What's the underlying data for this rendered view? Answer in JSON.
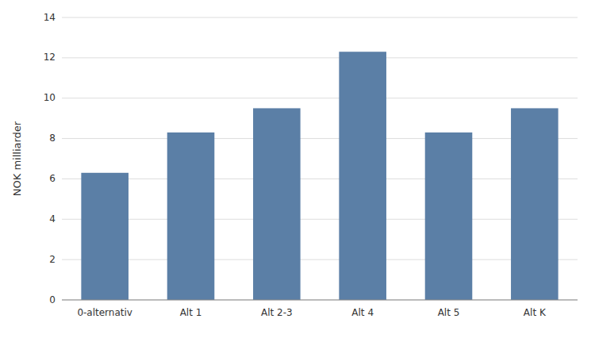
{
  "chart_data": {
    "type": "bar",
    "categories": [
      "0-alternativ",
      "Alt 1",
      "Alt 2-3",
      "Alt 4",
      "Alt 5",
      "Alt K"
    ],
    "values": [
      6.3,
      8.3,
      9.5,
      12.3,
      8.3,
      9.5
    ],
    "color": "#5b7fa6",
    "ylabel": "NOK milliarder",
    "ylim": [
      0,
      14
    ],
    "yticks": [
      0,
      2,
      4,
      6,
      8,
      10,
      12,
      14
    ],
    "grid": true
  }
}
